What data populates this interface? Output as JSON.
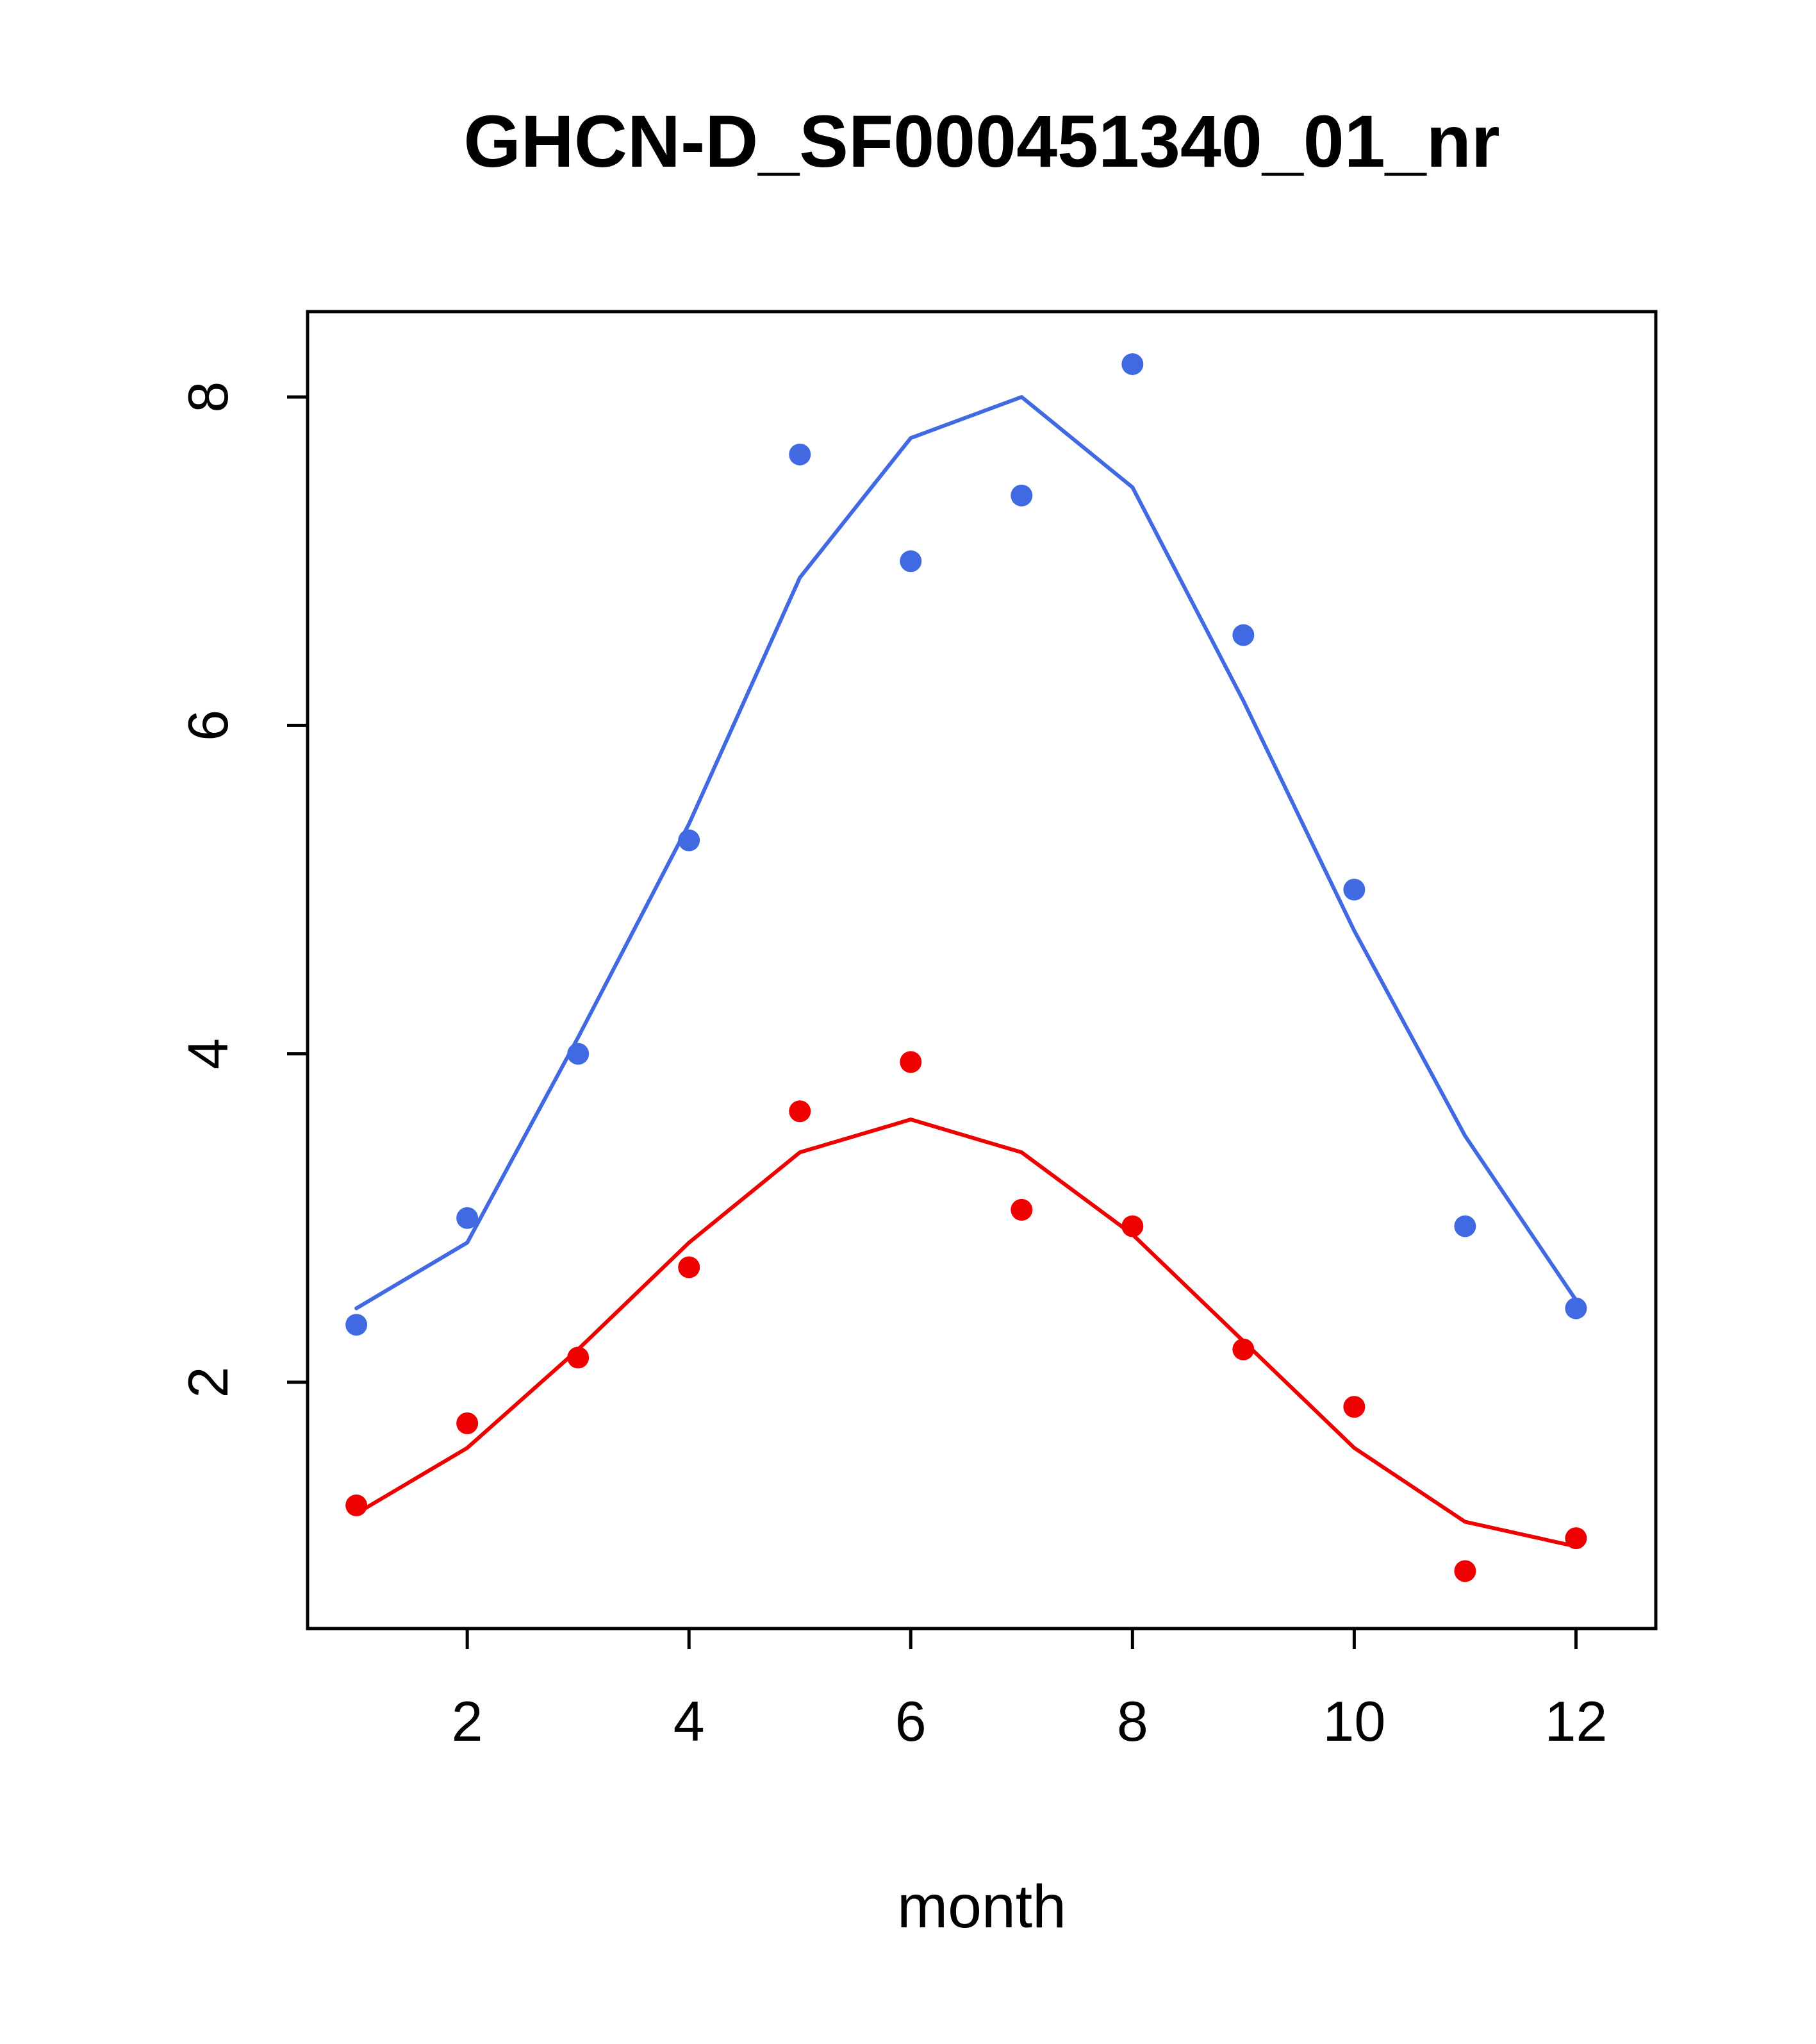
{
  "figure": {
    "background": "#ffffff",
    "axis_color": "#000000"
  },
  "chart_data": {
    "type": "scatter",
    "title": "GHCN-D_SF000451340_01_nr",
    "xlabel": "month",
    "ylabel": "",
    "x": [
      1,
      2,
      3,
      4,
      5,
      6,
      7,
      8,
      9,
      10,
      11,
      12
    ],
    "xlim": [
      0.56,
      12.72
    ],
    "ylim": [
      0.5,
      8.52
    ],
    "xticks": [
      2,
      4,
      6,
      8,
      10,
      12
    ],
    "yticks": [
      2,
      4,
      6,
      8
    ],
    "grid": false,
    "legend": null,
    "series": [
      {
        "name": "blue-fit-line",
        "kind": "line",
        "color": "#4169e1",
        "values": [
          2.45,
          2.85,
          4.1,
          5.4,
          6.9,
          7.75,
          8.0,
          7.45,
          6.15,
          4.75,
          3.5,
          2.5
        ]
      },
      {
        "name": "red-fit-line",
        "kind": "line",
        "color": "#ee0000",
        "values": [
          1.2,
          1.6,
          2.2,
          2.85,
          3.4,
          3.6,
          3.4,
          2.9,
          2.25,
          1.6,
          1.15,
          1.0
        ]
      },
      {
        "name": "blue-monthly-points",
        "kind": "points",
        "color": "#4169e1",
        "values": [
          2.35,
          3.0,
          4.0,
          5.3,
          7.65,
          7.0,
          7.4,
          8.2,
          6.55,
          5.0,
          2.95,
          2.45
        ]
      },
      {
        "name": "red-monthly-points",
        "kind": "points",
        "color": "#ee0000",
        "values": [
          1.25,
          1.75,
          2.15,
          2.7,
          3.65,
          3.95,
          3.05,
          2.95,
          2.2,
          1.85,
          0.85,
          1.05
        ]
      }
    ]
  },
  "layout_note": ""
}
